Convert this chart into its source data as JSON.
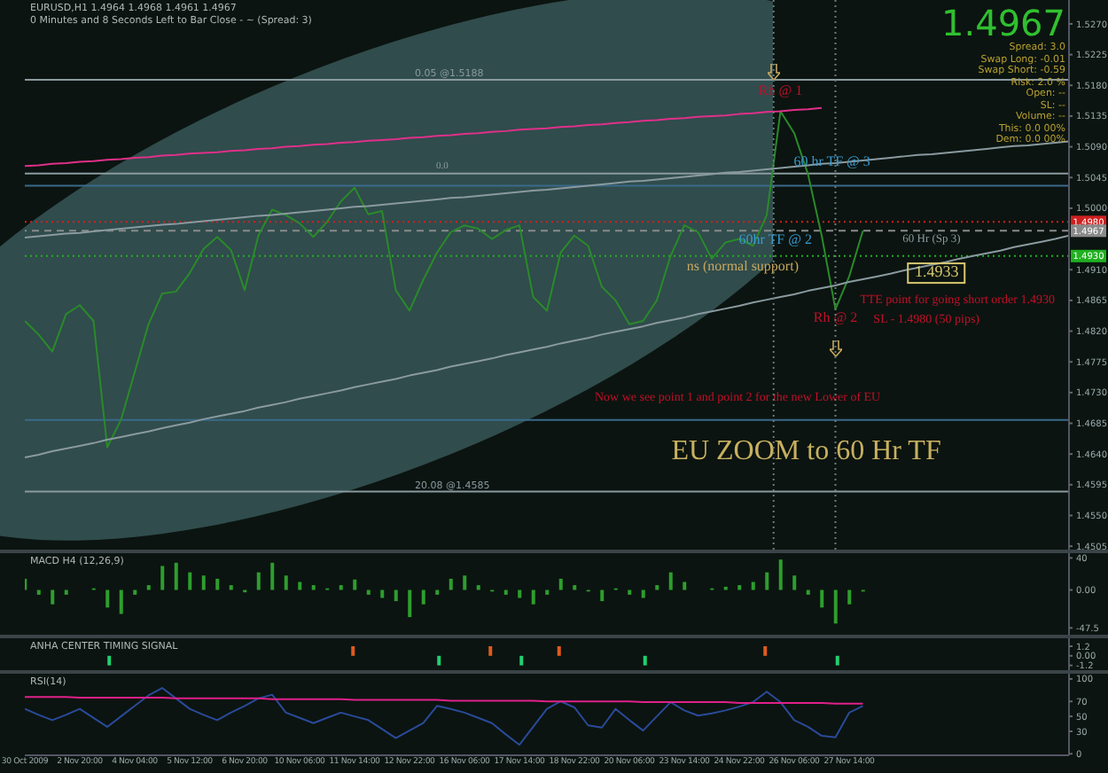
{
  "chart_data": [
    {
      "type": "line",
      "title": "EURUSD,H1 1.4964 1.4968 1.4961 1.4967",
      "subtitle": "0 Minutes and 8 Seconds Left to Bar Close - ~ (Spread: 3)",
      "categories": [
        null,
        null,
        null,
        null,
        null,
        null,
        null,
        null,
        null,
        null,
        null,
        null,
        null,
        null,
        null,
        null,
        null,
        null,
        null,
        null,
        null,
        null,
        null,
        null,
        null,
        null,
        null,
        null,
        null,
        null,
        null,
        null,
        null,
        null,
        null,
        null,
        null,
        null,
        null,
        null,
        null,
        null,
        null,
        null,
        null,
        null,
        null,
        null,
        null,
        null,
        null,
        null,
        null,
        null,
        null,
        null,
        null,
        null,
        null,
        null,
        null,
        null,
        null,
        null,
        null,
        null,
        null,
        null,
        null,
        null,
        null,
        null,
        null,
        null,
        null,
        null,
        null
      ],
      "ylim": [
        1.45,
        1.5305
      ],
      "yticks": [
        {
          "value": 1.527,
          "label": "1.5270"
        },
        {
          "value": 1.5225,
          "label": "1.5225"
        },
        {
          "value": 1.518,
          "label": "1.5180"
        },
        {
          "value": 1.5135,
          "label": "1.5135"
        },
        {
          "value": 1.509,
          "label": "1.5090"
        },
        {
          "value": 1.5045,
          "label": "1.5045"
        },
        {
          "value": 1.5,
          "label": "1.5000"
        },
        {
          "value": 1.491,
          "label": "1.4910"
        },
        {
          "value": 1.4865,
          "label": "1.4865"
        },
        {
          "value": 1.482,
          "label": "1.4820"
        },
        {
          "value": 1.4775,
          "label": "1.4775"
        },
        {
          "value": 1.473,
          "label": "1.4730"
        },
        {
          "value": 1.4685,
          "label": "1.4685"
        },
        {
          "value": 1.464,
          "label": "1.4640"
        },
        {
          "value": 1.4595,
          "label": "1.4595"
        },
        {
          "value": 1.455,
          "label": "1.4550"
        },
        {
          "value": 1.4505,
          "label": "1.4505"
        }
      ],
      "tick_labels": "y",
      "series": [
        {
          "color": "#2a8a2a",
          "values": [
            1.4835,
            1.4815,
            1.479,
            1.4845,
            1.4858,
            1.4835,
            1.465,
            1.469,
            1.476,
            1.483,
            1.4875,
            1.4878,
            1.4905,
            1.494,
            1.4958,
            1.4939,
            1.488,
            1.496,
            1.4998,
            1.499,
            1.4978,
            1.4958,
            1.498,
            1.501,
            1.503,
            1.4991,
            1.4996,
            1.488,
            1.485,
            1.4895,
            1.4935,
            1.4965,
            1.4975,
            1.497,
            1.4955,
            1.4968,
            1.4975,
            1.487,
            1.485,
            1.4935,
            1.496,
            1.4945,
            1.4885,
            1.4865,
            1.483,
            1.4835,
            1.4865,
            1.493,
            1.4975,
            1.4965,
            1.4926,
            1.495,
            1.4955,
            1.4945,
            1.499,
            1.5142,
            1.511,
            1.505,
            1.496,
            1.4852,
            1.49,
            1.4967,
            null,
            null,
            null,
            null,
            null,
            null,
            null,
            null,
            null,
            null,
            null,
            null,
            null,
            null,
            null
          ]
        },
        {
          "color": "#e0308a",
          "values": [
            1.5062,
            1.5063,
            1.5065,
            1.5066,
            1.5068,
            1.5069,
            1.5071,
            1.5072,
            1.5074,
            1.5075,
            1.5077,
            1.5078,
            1.508,
            1.5081,
            1.5082,
            1.5084,
            1.5085,
            1.5087,
            1.5088,
            1.509,
            1.5091,
            1.5093,
            1.5094,
            1.5096,
            1.5097,
            1.5099,
            1.51,
            1.5101,
            1.5103,
            1.5104,
            1.5106,
            1.5107,
            1.5109,
            1.511,
            1.5112,
            1.5113,
            1.5115,
            1.5116,
            1.5117,
            1.5119,
            1.512,
            1.5122,
            1.5123,
            1.5125,
            1.5126,
            1.5128,
            1.5129,
            1.5131,
            1.5132,
            1.5134,
            1.5135,
            1.5136,
            1.5138,
            1.5139,
            1.5141,
            1.5142,
            1.5144,
            1.5145,
            1.5147,
            null,
            null,
            null,
            null,
            null,
            null,
            null,
            null,
            null,
            null,
            null,
            null,
            null,
            null,
            null,
            null,
            null,
            null
          ]
        },
        {
          "color": "#8a9aa0",
          "values": [
            1.4957,
            1.4959,
            1.4961,
            1.4963,
            1.4964,
            1.4966,
            1.4968,
            1.497,
            1.4972,
            1.4974,
            1.4976,
            1.4977,
            1.4979,
            1.4981,
            1.4983,
            1.4985,
            1.4987,
            1.4989,
            1.499,
            1.4992,
            1.4994,
            1.4996,
            1.4998,
            1.5,
            1.5002,
            1.5003,
            1.5005,
            1.5007,
            1.5009,
            1.5011,
            1.5013,
            1.5015,
            1.5016,
            1.5018,
            1.502,
            1.5022,
            1.5024,
            1.5026,
            1.5027,
            1.5029,
            1.5031,
            1.5033,
            1.5035,
            1.5037,
            1.5039,
            1.504,
            1.5042,
            1.5044,
            1.5046,
            1.5048,
            1.505,
            1.5052,
            1.5053,
            1.5055,
            1.5057,
            1.5059,
            1.5061,
            1.5063,
            1.5065,
            1.5066,
            1.5068,
            1.507,
            1.5072,
            1.5074,
            1.5076,
            1.5078,
            1.5079,
            1.5081,
            1.5083,
            1.5085,
            1.5087,
            1.5089,
            1.5091,
            1.5092,
            1.5094,
            1.5096,
            1.5098
          ]
        },
        {
          "color": "#8a9aa0",
          "values": [
            1.4635,
            1.4639,
            1.4644,
            1.4648,
            1.4652,
            1.4656,
            1.4661,
            1.4665,
            1.4669,
            1.4673,
            1.4678,
            1.4682,
            1.4686,
            1.4691,
            1.4695,
            1.4699,
            1.4703,
            1.4708,
            1.4712,
            1.4716,
            1.4721,
            1.4725,
            1.4729,
            1.4733,
            1.4738,
            1.4742,
            1.4746,
            1.475,
            1.4755,
            1.4759,
            1.4763,
            1.4768,
            1.4772,
            1.4776,
            1.478,
            1.4785,
            1.4789,
            1.4793,
            1.4797,
            1.4802,
            1.4806,
            1.481,
            1.4815,
            1.4819,
            1.4823,
            1.4827,
            1.4832,
            1.4836,
            1.484,
            1.4845,
            1.4849,
            1.4853,
            1.4857,
            1.4862,
            1.4866,
            1.487,
            1.4874,
            1.4879,
            1.4883,
            1.4887,
            1.4892,
            1.4896,
            1.49,
            1.4904,
            1.4909,
            1.4913,
            1.4917,
            1.4921,
            1.4926,
            1.493,
            1.4934,
            1.4938,
            1.4943,
            1.4947,
            1.4951,
            1.4955,
            1.496
          ]
        }
      ],
      "ref_lines": [
        {
          "axis": "y",
          "value": 1.5188,
          "label": "0.05 @1.5188",
          "color": "#8a9aa0",
          "line_style": "solid"
        },
        {
          "axis": "y",
          "value": 1.5051,
          "color": "#8a9aa0",
          "line_style": "solid"
        },
        {
          "axis": "y",
          "value": 1.4585,
          "label": "20.08 @1.4585",
          "color": "#8a9aa0",
          "line_style": "solid"
        },
        {
          "axis": "y",
          "value": 1.5033,
          "color": "#3a6a8a",
          "line_style": "solid"
        },
        {
          "axis": "y",
          "value": 1.469,
          "color": "#3a6a8a",
          "line_style": "solid"
        },
        {
          "axis": "y",
          "value": 1.498,
          "label": "1.4980",
          "color": "#d02020",
          "line_style": "dotted"
        },
        {
          "axis": "y",
          "value": 1.4967,
          "label": "1.4967",
          "color": "#8a8a8a",
          "line_style": "dashed"
        },
        {
          "axis": "y",
          "value": 1.493,
          "label": "1.4930",
          "color": "#20b020",
          "line_style": "dotted"
        }
      ],
      "annotations": [
        "0.0",
        "Rh @ 1",
        "60 hr TF @ 3",
        "60hr TF @ 2",
        "ns (normal support)",
        "60 Hr (Sp 3)",
        "1.4933",
        "Rh @ 2",
        "TTE point for going short order 1.4930",
        "SL - 1.4980 (50 pips)",
        "Now we see point 1 and point 2 for the new Lower of EU",
        "EU ZOOM to 60 Hr TF",
        "1.4967",
        "Spread: 3.0",
        "Swap Long: -0.01",
        "Swap Short: -0.59",
        "Risk: 2.0 %",
        "Open: --",
        "SL: --",
        "Volume: --",
        "This: 0.0 00%",
        "Dem: 0.0 00%"
      ]
    },
    {
      "type": "bar",
      "title": "MACD H4 (12,26,9)",
      "categories": [
        null,
        null,
        null,
        null,
        null,
        null,
        null,
        null,
        null,
        null,
        null,
        null,
        null,
        null,
        null,
        null,
        null,
        null,
        null,
        null,
        null,
        null,
        null,
        null,
        null,
        null,
        null,
        null,
        null,
        null,
        null,
        null,
        null,
        null,
        null,
        null,
        null,
        null,
        null,
        null,
        null,
        null,
        null,
        null,
        null,
        null,
        null,
        null,
        null,
        null,
        null,
        null,
        null,
        null,
        null,
        null,
        null,
        null,
        null,
        null,
        null,
        null,
        null,
        null,
        null,
        null,
        null,
        null,
        null,
        null,
        null,
        null,
        null,
        null,
        null,
        null,
        null
      ],
      "ylim": [
        -56,
        46
      ],
      "yticks": [
        40,
        {
          "value": 0,
          "label": "0.00"
        },
        -47.5
      ],
      "tick_labels": "y",
      "series": [
        {
          "color": "#2e9e2e",
          "values": [
            14,
            -6,
            -18,
            -6,
            0,
            2,
            -22,
            -30,
            -6,
            6,
            30,
            34,
            22,
            18,
            14,
            6,
            -3,
            22,
            34,
            18,
            10,
            6,
            2,
            6,
            13,
            -6,
            -10,
            -14,
            -34,
            -18,
            -6,
            14,
            18,
            6,
            -2,
            -6,
            -10,
            -18,
            -6,
            14,
            6,
            -2,
            -14,
            2,
            -6,
            -10,
            6,
            22,
            10,
            0,
            2,
            4,
            6,
            10,
            22,
            38,
            18,
            -6,
            -22,
            -42,
            -18,
            -2,
            null,
            null,
            null,
            null,
            null,
            null,
            null,
            null,
            null,
            null,
            null,
            null,
            null,
            null,
            null
          ]
        }
      ]
    },
    {
      "type": "bar",
      "title": "ANHA CENTER TIMING SIGNAL",
      "categories": [
        null,
        null,
        null,
        null,
        null,
        null,
        null,
        null,
        null,
        null,
        null,
        null,
        null,
        null,
        null,
        null,
        null,
        null,
        null,
        null,
        null,
        null,
        null,
        null,
        null,
        null,
        null,
        null,
        null,
        null,
        null,
        null,
        null,
        null,
        null,
        null,
        null,
        null,
        null,
        null,
        null,
        null,
        null,
        null,
        null,
        null,
        null,
        null,
        null,
        null,
        null,
        null,
        null,
        null,
        null,
        null,
        null,
        null,
        null,
        null,
        null,
        null,
        null,
        null,
        null,
        null,
        null,
        null,
        null,
        null,
        null,
        null,
        null,
        null,
        null,
        null,
        null
      ],
      "ylim": [
        -1.8,
        2.2
      ],
      "yticks": [
        1.2,
        {
          "value": 0,
          "label": "0.00"
        },
        -1.2
      ],
      "tick_labels": "y",
      "series": [
        {
          "color": "#e05a1e",
          "values": [
            null,
            null,
            null,
            null,
            null,
            null,
            null,
            null,
            null,
            null,
            null,
            null,
            null,
            null,
            null,
            null,
            null,
            null,
            null,
            null,
            null,
            null,
            null,
            null,
            1.2,
            null,
            null,
            null,
            null,
            null,
            null,
            null,
            null,
            null,
            1.2,
            null,
            null,
            null,
            null,
            1.2,
            null,
            null,
            null,
            null,
            null,
            null,
            null,
            null,
            null,
            null,
            null,
            null,
            null,
            null,
            1.2,
            null,
            null,
            null,
            null,
            null,
            null,
            null,
            null,
            null,
            null,
            null,
            null,
            null,
            null,
            null,
            null,
            null,
            null,
            null,
            null,
            null,
            null
          ]
        },
        {
          "color": "#20d070",
          "values": [
            null,
            null,
            null,
            null,
            null,
            null,
            -1.2,
            null,
            null,
            null,
            null,
            null,
            null,
            null,
            null,
            null,
            null,
            null,
            null,
            null,
            null,
            null,
            null,
            null,
            null,
            null,
            null,
            null,
            null,
            null,
            -1.2,
            null,
            null,
            null,
            null,
            null,
            -1.2,
            null,
            null,
            null,
            null,
            null,
            null,
            null,
            null,
            -1.2,
            null,
            null,
            null,
            null,
            null,
            null,
            null,
            null,
            null,
            null,
            null,
            null,
            null,
            -1.2,
            null,
            null,
            null,
            null,
            null,
            null,
            null,
            null,
            null,
            null,
            null,
            null,
            null,
            null,
            null,
            null,
            null
          ]
        }
      ]
    },
    {
      "type": "line",
      "title": "RSI(14)",
      "categories": [
        "30 Oct 2009",
        null,
        null,
        null,
        "2 Nov 20:00",
        null,
        null,
        null,
        "4 Nov 04:00",
        null,
        null,
        null,
        "5 Nov 12:00",
        null,
        null,
        null,
        "6 Nov 20:00",
        null,
        null,
        null,
        "10 Nov 06:00",
        null,
        null,
        null,
        "11 Nov 14:00",
        null,
        null,
        null,
        "12 Nov 22:00",
        null,
        null,
        null,
        "16 Nov 06:00",
        null,
        null,
        null,
        "17 Nov 14:00",
        null,
        null,
        null,
        "18 Nov 22:00",
        null,
        null,
        null,
        "20 Nov 06:00",
        null,
        null,
        null,
        "23 Nov 14:00",
        null,
        null,
        null,
        "24 Nov 22:00",
        null,
        null,
        null,
        "26 Nov 06:00",
        null,
        null,
        null,
        "27 Nov 14:00",
        null,
        null,
        null,
        null,
        null,
        null,
        null,
        null,
        null,
        null,
        null,
        null,
        null,
        null,
        null,
        null
      ],
      "ylim": [
        -2,
        107
      ],
      "yticks": [
        100,
        70,
        50,
        30,
        0
      ],
      "series": [
        {
          "color": "#2a4a9a",
          "values": [
            60,
            52,
            45,
            52,
            60,
            48,
            36,
            50,
            64,
            78,
            88,
            74,
            60,
            52,
            45,
            55,
            64,
            74,
            79,
            55,
            48,
            41,
            48,
            55,
            50,
            45,
            33,
            21,
            31,
            41,
            64,
            60,
            55,
            48,
            41,
            26,
            12,
            36,
            60,
            70,
            62,
            38,
            35,
            60,
            45,
            31,
            50,
            69,
            58,
            51,
            54,
            58,
            63,
            69,
            83,
            69,
            45,
            36,
            24,
            22,
            55,
            64,
            null,
            null,
            null,
            null,
            null,
            null,
            null,
            null,
            null,
            null,
            null,
            null,
            null,
            null,
            null
          ]
        },
        {
          "color": "#e0208a",
          "values": [
            76,
            76,
            76,
            76,
            75,
            75,
            75,
            75,
            75,
            75,
            75,
            74,
            74,
            74,
            74,
            74,
            74,
            74,
            73,
            73,
            73,
            73,
            73,
            73,
            72,
            72,
            72,
            72,
            72,
            72,
            72,
            71,
            71,
            71,
            71,
            71,
            71,
            71,
            70,
            70,
            70,
            70,
            70,
            70,
            70,
            69,
            69,
            69,
            69,
            69,
            69,
            69,
            68,
            68,
            68,
            68,
            68,
            68,
            68,
            67,
            67,
            67,
            null,
            null,
            null,
            null,
            null,
            null,
            null,
            null,
            null,
            null,
            null,
            null,
            null,
            null,
            null
          ]
        }
      ]
    }
  ]
}
